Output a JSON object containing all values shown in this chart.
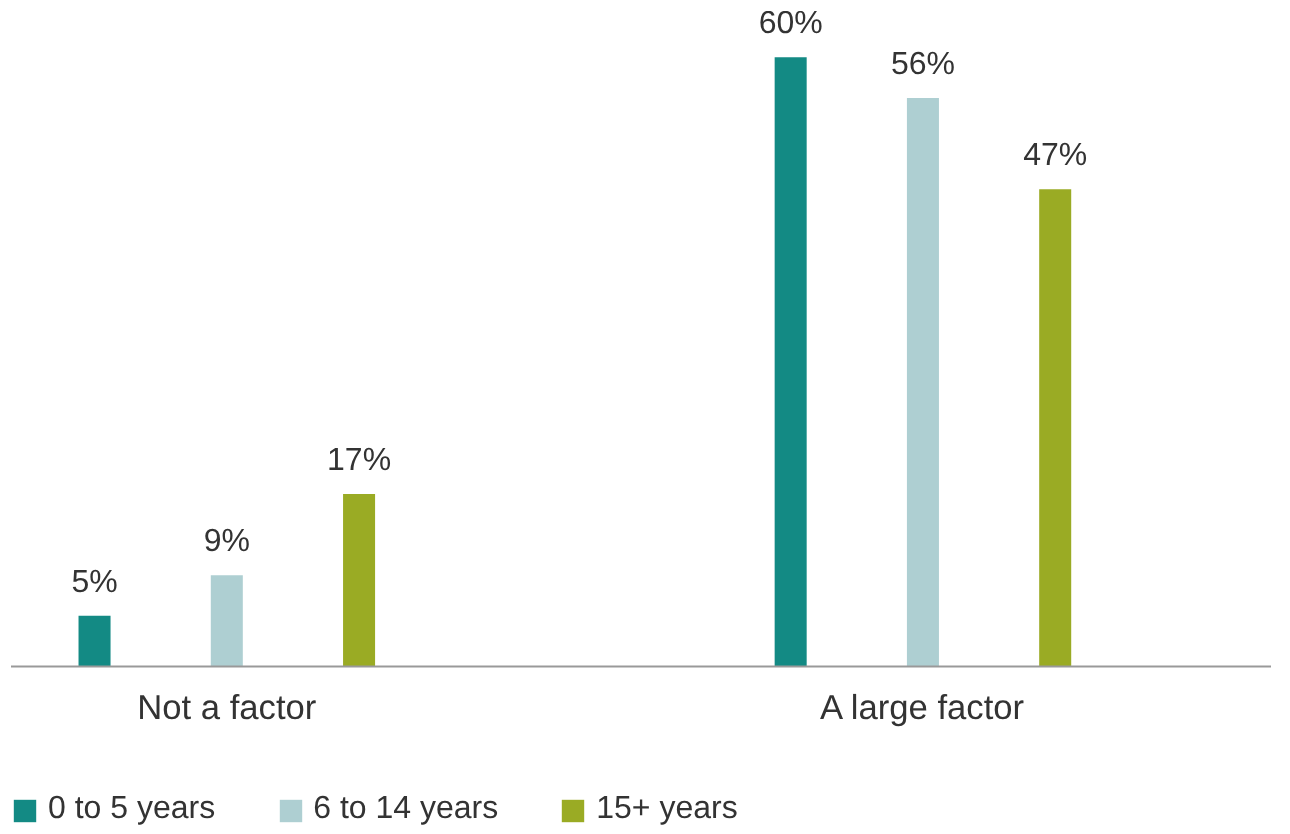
{
  "chart_data": {
    "type": "bar",
    "categories": [
      "Not a factor",
      "A large factor"
    ],
    "series": [
      {
        "name": "0 to 5 years",
        "color": "#138a84",
        "values": [
          5,
          60
        ],
        "value_labels": [
          "5%",
          "60%"
        ]
      },
      {
        "name": "6 to 14 years",
        "color": "#aecfd2",
        "values": [
          9,
          56
        ],
        "value_labels": [
          "9%",
          "56%"
        ]
      },
      {
        "name": "15+ years",
        "color": "#9aab24",
        "values": [
          17,
          47
        ],
        "value_labels": [
          "17%",
          "47%"
        ]
      }
    ],
    "legend": "bottom left"
  }
}
